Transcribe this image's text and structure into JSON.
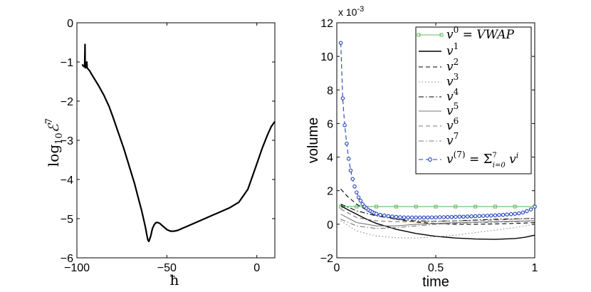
{
  "chart_data": [
    {
      "type": "line",
      "xlabel": "ħ",
      "ylabel_base": "log",
      "ylabel_sub": "10",
      "ylabel_symbol": "ℰ",
      "ylabel_sup": "7",
      "xlim": [
        -100,
        10
      ],
      "ylim": [
        -6,
        0
      ],
      "xticks": [
        -100,
        -50,
        0
      ],
      "yticks": [
        0,
        -1,
        -2,
        -3,
        -4,
        -5,
        -6
      ],
      "series": [
        {
          "name": "log10 E7",
          "color": "#000000",
          "x": [
            -97,
            -96.5,
            -96,
            -95.7,
            -95.5,
            -95.4,
            -95.3,
            -95.1,
            -94.7,
            -94.5,
            -94.3,
            -94,
            -93,
            -92,
            -90,
            -88,
            -85,
            -82,
            -80,
            -77,
            -74,
            -72,
            -70,
            -68,
            -66,
            -64,
            -62,
            -61,
            -60.5,
            -60,
            -59,
            -58,
            -57,
            -56,
            -55,
            -54,
            -53,
            -52,
            -51,
            -50,
            -49,
            -48,
            -47,
            -46,
            -45,
            -44,
            -42,
            -40,
            -35,
            -30,
            -25,
            -20,
            -15,
            -10,
            -5,
            0,
            3,
            6,
            8,
            10
          ],
          "y": [
            -1.06,
            -1.1,
            -1.12,
            -1.1,
            -0.55,
            -1.1,
            -1.15,
            -1.14,
            -1.1,
            -1.0,
            -1.15,
            -1.17,
            -1.22,
            -1.3,
            -1.45,
            -1.6,
            -1.85,
            -2.15,
            -2.4,
            -2.8,
            -3.2,
            -3.5,
            -3.8,
            -4.1,
            -4.45,
            -4.8,
            -5.2,
            -5.45,
            -5.55,
            -5.58,
            -5.45,
            -5.25,
            -5.15,
            -5.1,
            -5.1,
            -5.12,
            -5.16,
            -5.2,
            -5.24,
            -5.28,
            -5.3,
            -5.32,
            -5.32,
            -5.32,
            -5.31,
            -5.3,
            -5.26,
            -5.22,
            -5.12,
            -5.02,
            -4.92,
            -4.82,
            -4.72,
            -4.58,
            -4.25,
            -3.6,
            -3.2,
            -2.85,
            -2.65,
            -2.52
          ]
        }
      ]
    },
    {
      "type": "line",
      "xlabel": "time",
      "ylabel": "volume",
      "multiplier": "x 10",
      "multiplier_exp": "-3",
      "xlim": [
        0,
        1
      ],
      "ylim": [
        -2,
        12
      ],
      "xticks": [
        "0",
        "0.5",
        "1"
      ],
      "yticks": [
        "12",
        "10",
        "8",
        "6",
        "4",
        "2",
        "0",
        "−2"
      ],
      "legend_position": "top-right",
      "series": [
        {
          "name": "v^0 = VWAP",
          "legend": [
            "v",
            "0",
            " = VWAP"
          ],
          "color": "#5fbf5f",
          "style": "solid",
          "marker": "square",
          "x": [
            0.02,
            0.1,
            0.2,
            0.3,
            0.4,
            0.5,
            0.6,
            0.7,
            0.8,
            0.9,
            1.0
          ],
          "y": [
            1.05,
            1.05,
            1.05,
            1.05,
            1.05,
            1.05,
            1.05,
            1.05,
            1.05,
            1.05,
            1.05
          ]
        },
        {
          "name": "v^1",
          "legend": [
            "v",
            "1",
            ""
          ],
          "color": "#000000",
          "style": "solid",
          "x": [
            0.02,
            0.05,
            0.1,
            0.15,
            0.2,
            0.3,
            0.4,
            0.5,
            0.6,
            0.7,
            0.8,
            0.9,
            0.95,
            1.0
          ],
          "y": [
            1.1,
            0.9,
            0.6,
            0.3,
            0.05,
            -0.3,
            -0.55,
            -0.72,
            -0.82,
            -0.88,
            -0.9,
            -0.85,
            -0.78,
            -0.65
          ]
        },
        {
          "name": "v^2",
          "legend": [
            "v",
            "2",
            ""
          ],
          "color": "#000000",
          "style": "dashed",
          "x": [
            0.02,
            0.05,
            0.1,
            0.15,
            0.2,
            0.3,
            0.4,
            0.5,
            0.6,
            0.7,
            0.8,
            0.9,
            1.0
          ],
          "y": [
            2.1,
            1.7,
            1.2,
            0.85,
            0.6,
            0.3,
            0.12,
            0.05,
            0.0,
            0.0,
            0.02,
            0.05,
            0.1
          ]
        },
        {
          "name": "v^3",
          "legend": [
            "v",
            "3",
            ""
          ],
          "color": "#888888",
          "style": "dotted",
          "x": [
            0.02,
            0.1,
            0.2,
            0.3,
            0.4,
            0.5,
            0.6,
            0.7,
            0.8,
            0.9,
            1.0
          ],
          "y": [
            0.2,
            -0.4,
            -0.7,
            -0.8,
            -0.82,
            -0.75,
            -0.65,
            -0.5,
            -0.35,
            -0.2,
            0.0
          ]
        },
        {
          "name": "v^4",
          "legend": [
            "v",
            "4",
            ""
          ],
          "color": "#000000",
          "style": "dashdot",
          "x": [
            0.02,
            0.1,
            0.2,
            0.3,
            0.4,
            0.5,
            0.6,
            0.7,
            0.8,
            0.9,
            1.0
          ],
          "y": [
            1.2,
            0.8,
            0.5,
            0.3,
            0.2,
            0.18,
            0.2,
            0.25,
            0.3,
            0.32,
            0.35
          ]
        },
        {
          "name": "v^5",
          "legend": [
            "v",
            "5",
            ""
          ],
          "color": "#777777",
          "style": "solid",
          "x": [
            0.02,
            0.1,
            0.2,
            0.3,
            0.4,
            0.5,
            0.6,
            0.7,
            0.8,
            0.9,
            1.0
          ],
          "y": [
            0.6,
            0.1,
            -0.1,
            -0.1,
            0.0,
            0.05,
            0.1,
            0.12,
            0.15,
            0.18,
            0.2
          ]
        },
        {
          "name": "v^6",
          "legend": [
            "v",
            "6",
            ""
          ],
          "color": "#777777",
          "style": "dashed",
          "x": [
            0.02,
            0.1,
            0.2,
            0.3,
            0.4,
            0.5,
            0.6,
            0.7,
            0.8,
            0.9,
            1.0
          ],
          "y": [
            0.9,
            0.4,
            0.2,
            0.15,
            0.15,
            0.18,
            0.2,
            0.22,
            0.25,
            0.3,
            0.35
          ]
        },
        {
          "name": "v^7",
          "legend": [
            "v",
            "7",
            ""
          ],
          "color": "#777777",
          "style": "dashdot",
          "x": [
            0.02,
            0.1,
            0.2,
            0.3,
            0.4,
            0.5,
            0.6,
            0.7,
            0.8,
            0.9,
            1.0
          ],
          "y": [
            0.3,
            -0.1,
            -0.25,
            -0.2,
            -0.1,
            0.0,
            0.05,
            0.1,
            0.12,
            0.15,
            0.2
          ]
        },
        {
          "name": "v^(7) = sum_{i=0}^7 v^i",
          "legend": [
            "v",
            "(7)",
            " = ",
            "Σ",
            "7",
            "i=0",
            " v",
            "i"
          ],
          "color": "#1f3fbf",
          "style": "dashed",
          "marker": "circle",
          "x": [
            0.02,
            0.03,
            0.04,
            0.05,
            0.06,
            0.07,
            0.08,
            0.09,
            0.1,
            0.11,
            0.12,
            0.13,
            0.14,
            0.15,
            0.16,
            0.17,
            0.18,
            0.19,
            0.2,
            0.22,
            0.24,
            0.26,
            0.28,
            0.3,
            0.32,
            0.34,
            0.36,
            0.38,
            0.4,
            0.42,
            0.44,
            0.46,
            0.48,
            0.5,
            0.52,
            0.54,
            0.56,
            0.58,
            0.6,
            0.62,
            0.64,
            0.66,
            0.68,
            0.7,
            0.72,
            0.74,
            0.76,
            0.78,
            0.8,
            0.82,
            0.84,
            0.86,
            0.88,
            0.9,
            0.92,
            0.94,
            0.96,
            0.98,
            1.0
          ],
          "y": [
            10.8,
            7.5,
            5.9,
            4.8,
            3.9,
            3.2,
            2.7,
            2.25,
            1.9,
            1.6,
            1.4,
            1.2,
            1.05,
            0.95,
            0.85,
            0.78,
            0.72,
            0.66,
            0.62,
            0.56,
            0.52,
            0.48,
            0.46,
            0.44,
            0.42,
            0.41,
            0.4,
            0.4,
            0.4,
            0.4,
            0.4,
            0.4,
            0.41,
            0.41,
            0.42,
            0.42,
            0.43,
            0.43,
            0.44,
            0.45,
            0.45,
            0.46,
            0.47,
            0.48,
            0.49,
            0.5,
            0.51,
            0.52,
            0.53,
            0.55,
            0.56,
            0.58,
            0.6,
            0.62,
            0.65,
            0.7,
            0.78,
            0.88,
            1.05
          ]
        }
      ]
    }
  ]
}
